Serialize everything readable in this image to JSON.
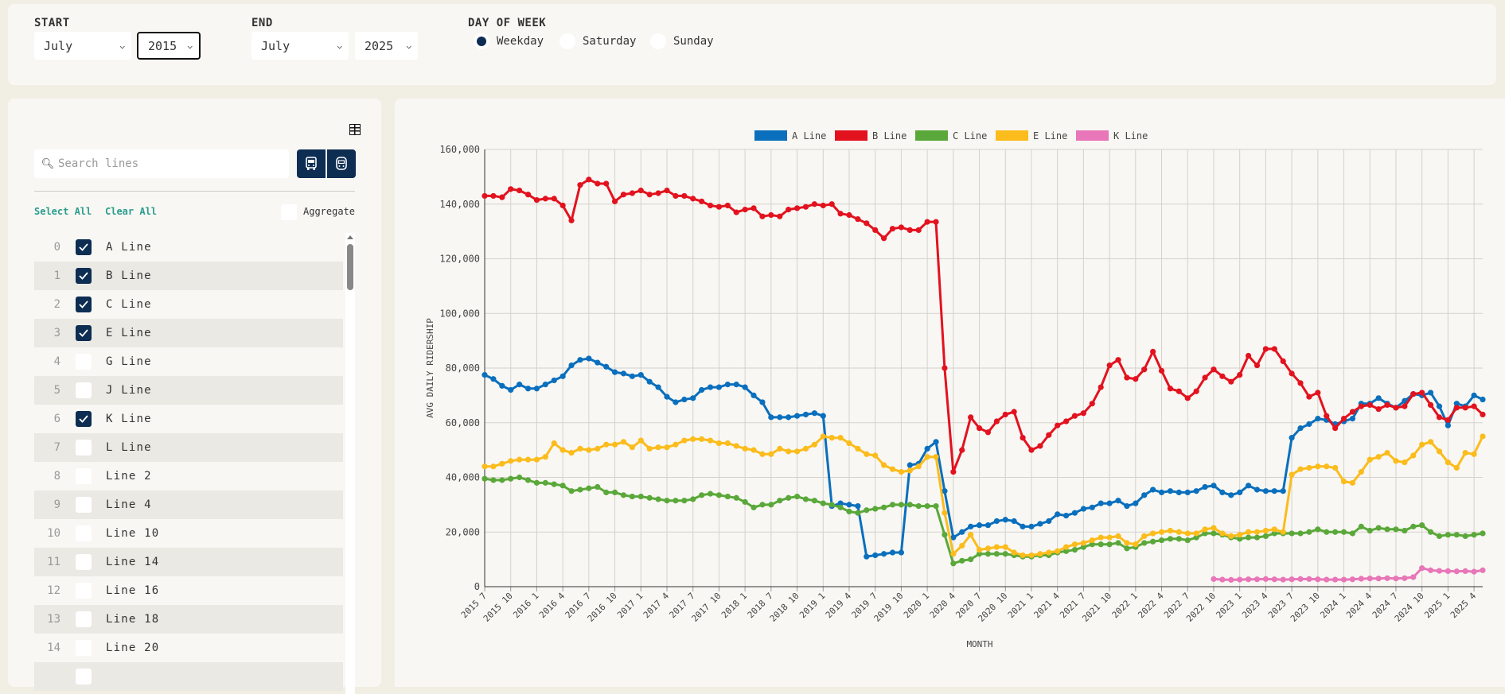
{
  "filters": {
    "start": {
      "label": "START",
      "month": "July",
      "year": "2015"
    },
    "end": {
      "label": "END",
      "month": "July",
      "year": "2025"
    },
    "day_of_week": {
      "label": "DAY OF WEEK",
      "options": [
        "Weekday",
        "Saturday",
        "Sunday"
      ],
      "selected": "Weekday"
    }
  },
  "sidebar": {
    "search_placeholder": "Search lines",
    "select_all": "Select All",
    "clear_all": "Clear All",
    "aggregate_label": "Aggregate",
    "aggregate_checked": false,
    "lines": [
      {
        "index": "0",
        "name": "A Line",
        "checked": true
      },
      {
        "index": "1",
        "name": "B Line",
        "checked": true
      },
      {
        "index": "2",
        "name": "C Line",
        "checked": true
      },
      {
        "index": "3",
        "name": "E Line",
        "checked": true
      },
      {
        "index": "4",
        "name": "G Line",
        "checked": false
      },
      {
        "index": "5",
        "name": "J Line",
        "checked": false
      },
      {
        "index": "6",
        "name": "K Line",
        "checked": true
      },
      {
        "index": "7",
        "name": "L Line",
        "checked": false
      },
      {
        "index": "8",
        "name": "Line 2",
        "checked": false
      },
      {
        "index": "9",
        "name": "Line 4",
        "checked": false
      },
      {
        "index": "10",
        "name": "Line 10",
        "checked": false
      },
      {
        "index": "11",
        "name": "Line 14",
        "checked": false
      },
      {
        "index": "12",
        "name": "Line 16",
        "checked": false
      },
      {
        "index": "13",
        "name": "Line 18",
        "checked": false
      },
      {
        "index": "14",
        "name": "Line 20",
        "checked": false
      }
    ]
  },
  "colors": {
    "accent": "#0d2d52",
    "link": "#2a9d8f"
  },
  "chart_data": {
    "type": "line",
    "xlabel": "MONTH",
    "ylabel": "AVG DAILY RIDERSHIP",
    "ylim": [
      0,
      160000
    ],
    "yticks": [
      0,
      20000,
      40000,
      60000,
      80000,
      100000,
      120000,
      140000,
      160000
    ],
    "grid": true,
    "legend": "top",
    "categories": [
      "2015 7",
      "2015 8",
      "2015 9",
      "2015 10",
      "2015 11",
      "2015 12",
      "2016 1",
      "2016 2",
      "2016 3",
      "2016 4",
      "2016 5",
      "2016 6",
      "2016 7",
      "2016 8",
      "2016 9",
      "2016 10",
      "2016 11",
      "2016 12",
      "2017 1",
      "2017 2",
      "2017 3",
      "2017 4",
      "2017 5",
      "2017 6",
      "2017 7",
      "2017 8",
      "2017 9",
      "2017 10",
      "2017 11",
      "2017 12",
      "2018 1",
      "2018 2",
      "2018 3",
      "2018 7",
      "2018 8",
      "2018 9",
      "2018 10",
      "2018 11",
      "2018 12",
      "2019 1",
      "2019 2",
      "2019 3",
      "2019 4",
      "2019 5",
      "2019 6",
      "2019 7",
      "2019 8",
      "2019 9",
      "2019 10",
      "2019 11",
      "2019 12",
      "2020 1",
      "2020 2",
      "2020 3",
      "2020 4",
      "2020 5",
      "2020 6",
      "2020 7",
      "2020 8",
      "2020 9",
      "2020 10",
      "2020 11",
      "2020 12",
      "2021 1",
      "2021 2",
      "2021 3",
      "2021 4",
      "2021 5",
      "2021 6",
      "2021 7",
      "2021 8",
      "2021 9",
      "2021 10",
      "2021 11",
      "2021 12",
      "2022 1",
      "2022 2",
      "2022 3",
      "2022 4",
      "2022 5",
      "2022 6",
      "2022 7",
      "2022 8",
      "2022 9",
      "2022 10",
      "2022 11",
      "2022 12",
      "2023 1",
      "2023 2",
      "2023 3",
      "2023 4",
      "2023 5",
      "2023 6",
      "2023 7",
      "2023 8",
      "2023 9",
      "2023 10",
      "2023 11",
      "2023 12",
      "2024 1",
      "2024 2",
      "2024 3",
      "2024 4",
      "2024 5",
      "2024 6",
      "2024 7",
      "2024 8",
      "2024 9",
      "2024 10",
      "2024 11",
      "2024 12",
      "2025 1",
      "2025 2",
      "2025 3",
      "2025 4",
      "2025 5"
    ],
    "series": [
      {
        "name": "A Line",
        "color": "#0a6fbd",
        "values": [
          77500,
          76000,
          73500,
          72000,
          74000,
          72500,
          72500,
          74000,
          75500,
          77000,
          81000,
          83000,
          83500,
          82000,
          80500,
          78500,
          78000,
          77000,
          77500,
          75000,
          73000,
          69500,
          67500,
          68500,
          69000,
          72000,
          73000,
          73000,
          74000,
          74000,
          73000,
          70000,
          67500,
          62000,
          62000,
          62000,
          62500,
          63000,
          63500,
          62500,
          29500,
          30500,
          30000,
          29500,
          11000,
          11500,
          12000,
          12500,
          12500,
          44500,
          45000,
          50500,
          53000,
          35000,
          18000,
          20000,
          22000,
          22500,
          22500,
          24000,
          24500,
          24000,
          22000,
          22000,
          23000,
          24000,
          26500,
          26000,
          27000,
          28500,
          29000,
          30500,
          30500,
          31500,
          29500,
          30500,
          33500,
          35500,
          34500,
          35000,
          34500,
          34500,
          35000,
          36500,
          37000,
          34500,
          33500,
          34500,
          37000,
          35500,
          35000,
          35000,
          35000,
          54500,
          58000,
          59500,
          61500,
          61000,
          59500,
          60500,
          61500,
          67000,
          67000,
          69000,
          67000,
          65500,
          68000,
          70500,
          70000,
          71000,
          66000,
          59000,
          67000,
          66000,
          70000,
          68500
        ]
      },
      {
        "name": "B Line",
        "color": "#e3121f",
        "values": [
          143000,
          143000,
          142500,
          145500,
          145000,
          143500,
          141500,
          142000,
          142000,
          139500,
          134000,
          147000,
          149000,
          147500,
          147500,
          141000,
          143500,
          144000,
          145000,
          143500,
          144000,
          145000,
          143000,
          143000,
          142000,
          141000,
          139500,
          139000,
          139500,
          137000,
          138000,
          138500,
          135500,
          136000,
          135500,
          138000,
          138500,
          139000,
          140000,
          139500,
          140000,
          136500,
          136000,
          134500,
          133000,
          130500,
          127500,
          131000,
          131500,
          130500,
          130500,
          133500,
          133500,
          80000,
          42000,
          50000,
          62000,
          58000,
          56500,
          60500,
          63000,
          64000,
          54500,
          50000,
          51500,
          55500,
          59000,
          60500,
          62500,
          63500,
          67000,
          73000,
          81000,
          83000,
          76500,
          76000,
          79500,
          86000,
          79000,
          72500,
          71500,
          69000,
          71500,
          76500,
          79500,
          77000,
          75000,
          77500,
          84500,
          81000,
          87000,
          87000,
          82500,
          78000,
          74500,
          69500,
          71000,
          62500,
          58000,
          61500,
          64000,
          66000,
          66500,
          65000,
          66500,
          65500,
          66000,
          70500,
          71000,
          66500,
          62000,
          61000,
          65500,
          65500,
          66000,
          63000
        ]
      },
      {
        "name": "C Line",
        "color": "#5aa83a",
        "values": [
          39500,
          39000,
          39000,
          39500,
          40000,
          39000,
          38000,
          38000,
          37500,
          37000,
          35000,
          35500,
          36000,
          36500,
          34500,
          34500,
          33500,
          33000,
          33000,
          32500,
          32000,
          31500,
          31500,
          31500,
          32000,
          33500,
          34000,
          33500,
          33000,
          32500,
          31000,
          29000,
          30000,
          30000,
          31500,
          32500,
          33000,
          32000,
          31500,
          30500,
          30000,
          29000,
          27500,
          27000,
          28000,
          28500,
          29000,
          30000,
          30000,
          30000,
          29500,
          29500,
          29500,
          19000,
          8500,
          9500,
          10000,
          12000,
          12000,
          12000,
          12000,
          11500,
          11000,
          11000,
          11500,
          11500,
          12500,
          13000,
          13500,
          14500,
          15500,
          15500,
          15500,
          16000,
          14000,
          14500,
          16000,
          16500,
          17000,
          17500,
          17500,
          17000,
          18000,
          19500,
          19500,
          19000,
          18000,
          17500,
          18000,
          18000,
          18500,
          19500,
          19500,
          19500,
          19500,
          20000,
          21000,
          20000,
          20000,
          20000,
          19500,
          22000,
          20500,
          21500,
          21000,
          21000,
          20500,
          22000,
          22500,
          20000,
          18500,
          19000,
          19000,
          18500,
          19000,
          19500
        ]
      },
      {
        "name": "E Line",
        "color": "#fbbc1c",
        "values": [
          44000,
          44000,
          45000,
          46000,
          46500,
          46500,
          46500,
          47500,
          52500,
          50000,
          49000,
          50500,
          50000,
          50500,
          52000,
          52000,
          53000,
          51000,
          53500,
          50500,
          51000,
          51000,
          52000,
          53500,
          54000,
          54000,
          53500,
          52500,
          52500,
          51500,
          50500,
          50000,
          48500,
          48500,
          50500,
          49500,
          49500,
          50500,
          52000,
          55000,
          54500,
          54500,
          52500,
          50500,
          48500,
          48000,
          44500,
          43000,
          42000,
          42500,
          44000,
          47500,
          47500,
          27000,
          12000,
          15000,
          19000,
          13500,
          14000,
          14500,
          14500,
          12500,
          11500,
          11500,
          12000,
          12500,
          13000,
          14500,
          15500,
          16000,
          17000,
          18000,
          18000,
          18500,
          16000,
          15500,
          18500,
          19500,
          20000,
          20500,
          20000,
          19500,
          19500,
          21000,
          21500,
          19500,
          18500,
          19000,
          20000,
          20000,
          20500,
          21000,
          20000,
          41000,
          43000,
          43500,
          44000,
          44000,
          43500,
          38500,
          38000,
          42000,
          46500,
          47500,
          49000,
          46000,
          45500,
          48000,
          52000,
          53000,
          49500,
          45500,
          43500,
          49000,
          48500,
          55000
        ]
      },
      {
        "name": "K Line",
        "color": "#e876b8",
        "values": [
          null,
          null,
          null,
          null,
          null,
          null,
          null,
          null,
          null,
          null,
          null,
          null,
          null,
          null,
          null,
          null,
          null,
          null,
          null,
          null,
          null,
          null,
          null,
          null,
          null,
          null,
          null,
          null,
          null,
          null,
          null,
          null,
          null,
          null,
          null,
          null,
          null,
          null,
          null,
          null,
          null,
          null,
          null,
          null,
          null,
          null,
          null,
          null,
          null,
          null,
          null,
          null,
          null,
          null,
          null,
          null,
          null,
          null,
          null,
          null,
          null,
          null,
          null,
          null,
          null,
          null,
          null,
          null,
          null,
          null,
          null,
          null,
          null,
          null,
          null,
          null,
          null,
          null,
          null,
          null,
          null,
          null,
          null,
          null,
          2800,
          2600,
          2500,
          2600,
          2700,
          2700,
          2800,
          2700,
          2600,
          2700,
          2800,
          2800,
          2700,
          2600,
          2600,
          2600,
          2700,
          2900,
          3000,
          3000,
          3100,
          3000,
          3100,
          3500,
          6800,
          6000,
          5800,
          5700,
          5600,
          5700,
          5500,
          6000
        ]
      }
    ]
  }
}
